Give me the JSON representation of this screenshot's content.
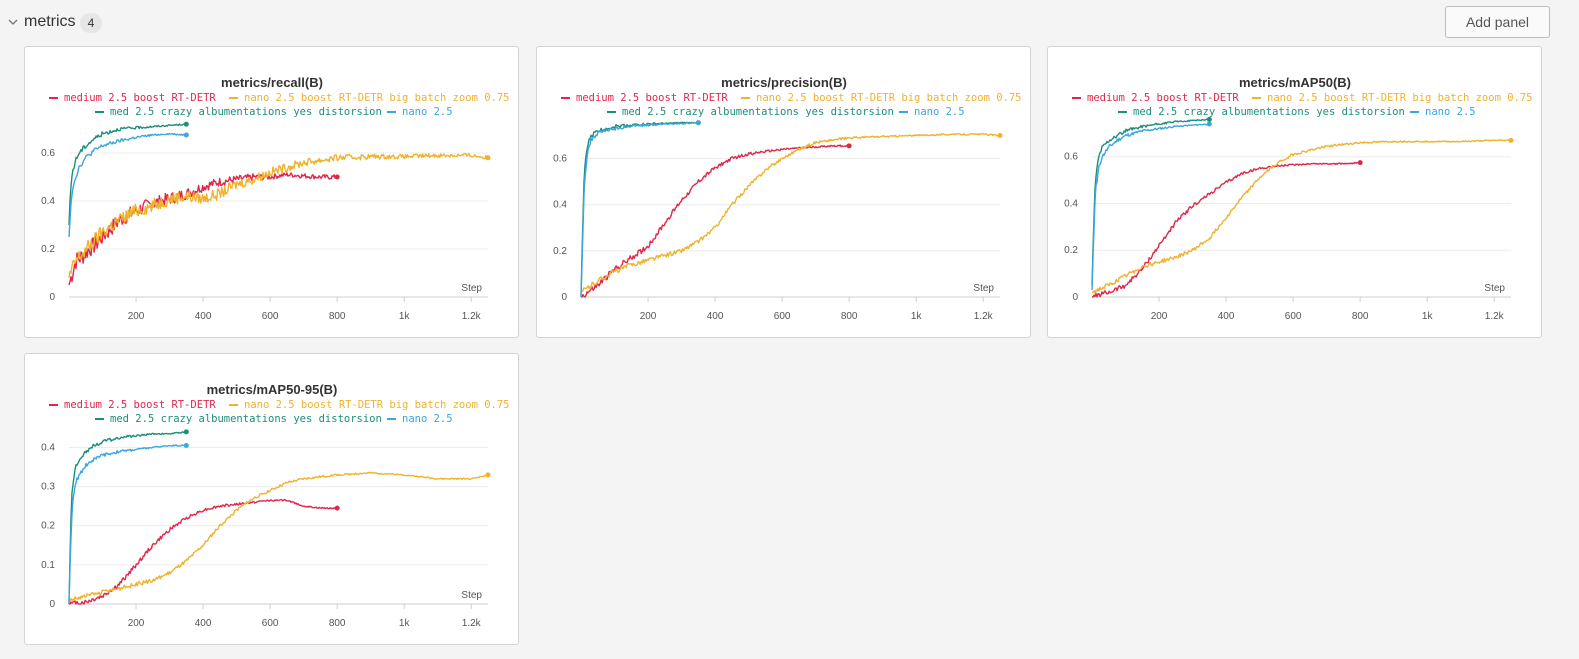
{
  "section": {
    "title": "metrics",
    "count": "4",
    "add_panel_label": "Add panel"
  },
  "colors": {
    "medium 2.5 boost RT-DETR": "#e0264a",
    "nano 2.5 boost RT-DETR big batch zoom 0.75": "#efb22c",
    "med 2.5 crazy albumentations yes distorsion": "#1e8e7c",
    "nano 2.5": "#3aa6dd"
  },
  "chart_data": [
    {
      "type": "line",
      "title": "metrics/recall(B)",
      "xlabel": "Step",
      "ylabel": "",
      "xlim": [
        0,
        1250
      ],
      "ylim": [
        0,
        0.75
      ],
      "xticks": [
        200,
        400,
        600,
        800,
        1000,
        1200
      ],
      "xtick_labels": [
        "200",
        "400",
        "600",
        "800",
        "1k",
        "1.2k"
      ],
      "yticks": [
        0,
        0.2,
        0.4,
        0.6
      ],
      "ytick_labels": [
        "0",
        "0.2",
        "0.4",
        "0.6"
      ],
      "legend": [
        "medium 2.5 boost RT-DETR",
        "nano 2.5 boost RT-DETR big batch zoom 0.75",
        "med 2.5 crazy albumentations yes distorsion",
        "nano 2.5"
      ],
      "series": [
        {
          "name": "medium 2.5 boost RT-DETR",
          "x": [
            0,
            20,
            40,
            60,
            80,
            100,
            150,
            200,
            250,
            300,
            350,
            400,
            450,
            500,
            550,
            600,
            650,
            700,
            750,
            800
          ],
          "y": [
            0.05,
            0.15,
            0.17,
            0.2,
            0.22,
            0.25,
            0.32,
            0.36,
            0.39,
            0.41,
            0.43,
            0.46,
            0.48,
            0.49,
            0.5,
            0.5,
            0.51,
            0.505,
            0.5,
            0.5
          ],
          "noise": 0.04
        },
        {
          "name": "nano 2.5 boost RT-DETR big batch zoom 0.75",
          "x": [
            0,
            20,
            40,
            60,
            80,
            100,
            150,
            200,
            250,
            300,
            350,
            400,
            450,
            500,
            550,
            600,
            700,
            800,
            900,
            1000,
            1100,
            1200,
            1250
          ],
          "y": [
            0.08,
            0.15,
            0.18,
            0.21,
            0.24,
            0.27,
            0.32,
            0.36,
            0.38,
            0.41,
            0.42,
            0.41,
            0.43,
            0.47,
            0.49,
            0.52,
            0.56,
            0.58,
            0.585,
            0.585,
            0.59,
            0.59,
            0.58
          ],
          "noise": 0.035
        },
        {
          "name": "med 2.5 crazy albumentations yes distorsion",
          "x": [
            0,
            5,
            10,
            20,
            30,
            50,
            75,
            100,
            150,
            200,
            250,
            300,
            350
          ],
          "y": [
            0.3,
            0.45,
            0.52,
            0.57,
            0.6,
            0.63,
            0.66,
            0.68,
            0.7,
            0.705,
            0.71,
            0.715,
            0.72
          ],
          "noise": 0.012
        },
        {
          "name": "nano 2.5",
          "x": [
            0,
            5,
            10,
            20,
            30,
            50,
            75,
            100,
            150,
            200,
            250,
            300,
            350
          ],
          "y": [
            0.25,
            0.38,
            0.45,
            0.5,
            0.54,
            0.58,
            0.61,
            0.63,
            0.65,
            0.665,
            0.675,
            0.68,
            0.675
          ],
          "noise": 0.012
        }
      ]
    },
    {
      "type": "line",
      "title": "metrics/precision(B)",
      "xlabel": "Step",
      "ylabel": "",
      "xlim": [
        0,
        1250
      ],
      "ylim": [
        0,
        0.78
      ],
      "xticks": [
        200,
        400,
        600,
        800,
        1000,
        1200
      ],
      "xtick_labels": [
        "200",
        "400",
        "600",
        "800",
        "1k",
        "1.2k"
      ],
      "yticks": [
        0,
        0.2,
        0.4,
        0.6
      ],
      "ytick_labels": [
        "0",
        "0.2",
        "0.4",
        "0.6"
      ],
      "legend": [
        "medium 2.5 boost RT-DETR",
        "nano 2.5 boost RT-DETR big batch zoom 0.75",
        "med 2.5 crazy albumentations yes distorsion",
        "nano 2.5"
      ],
      "series": [
        {
          "name": "medium 2.5 boost RT-DETR",
          "x": [
            0,
            50,
            100,
            150,
            200,
            250,
            300,
            350,
            400,
            450,
            500,
            550,
            600,
            650,
            700,
            750,
            800
          ],
          "y": [
            0,
            0.05,
            0.12,
            0.17,
            0.22,
            0.32,
            0.42,
            0.5,
            0.56,
            0.6,
            0.62,
            0.63,
            0.64,
            0.645,
            0.65,
            0.655,
            0.655
          ],
          "noise": 0.015
        },
        {
          "name": "nano 2.5 boost RT-DETR big batch zoom 0.75",
          "x": [
            0,
            50,
            100,
            150,
            200,
            250,
            300,
            350,
            400,
            450,
            500,
            550,
            600,
            650,
            700,
            800,
            900,
            1000,
            1100,
            1200,
            1250
          ],
          "y": [
            0.02,
            0.07,
            0.11,
            0.14,
            0.16,
            0.18,
            0.2,
            0.24,
            0.3,
            0.4,
            0.48,
            0.55,
            0.6,
            0.64,
            0.67,
            0.69,
            0.695,
            0.7,
            0.705,
            0.705,
            0.7
          ],
          "noise": 0.012
        },
        {
          "name": "med 2.5 crazy albumentations yes distorsion",
          "x": [
            0,
            5,
            10,
            20,
            30,
            50,
            75,
            100,
            150,
            200,
            250,
            300,
            350
          ],
          "y": [
            0,
            0.3,
            0.55,
            0.66,
            0.7,
            0.72,
            0.73,
            0.74,
            0.745,
            0.75,
            0.752,
            0.755,
            0.755
          ],
          "noise": 0.01
        },
        {
          "name": "nano 2.5",
          "x": [
            0,
            5,
            10,
            20,
            30,
            50,
            75,
            100,
            150,
            200,
            250,
            300,
            350
          ],
          "y": [
            0,
            0.25,
            0.5,
            0.63,
            0.68,
            0.71,
            0.72,
            0.73,
            0.74,
            0.745,
            0.75,
            0.752,
            0.755
          ],
          "noise": 0.01
        }
      ]
    },
    {
      "type": "line",
      "title": "metrics/mAP50(B)",
      "xlabel": "Step",
      "ylabel": "",
      "xlim": [
        0,
        1250
      ],
      "ylim": [
        0,
        0.77
      ],
      "xticks": [
        200,
        400,
        600,
        800,
        1000,
        1200
      ],
      "xtick_labels": [
        "200",
        "400",
        "600",
        "800",
        "1k",
        "1.2k"
      ],
      "yticks": [
        0,
        0.2,
        0.4,
        0.6
      ],
      "ytick_labels": [
        "0",
        "0.2",
        "0.4",
        "0.6"
      ],
      "legend": [
        "medium 2.5 boost RT-DETR",
        "nano 2.5 boost RT-DETR big batch zoom 0.75",
        "med 2.5 crazy albumentations yes distorsion",
        "nano 2.5"
      ],
      "series": [
        {
          "name": "medium 2.5 boost RT-DETR",
          "x": [
            0,
            50,
            100,
            150,
            200,
            250,
            300,
            350,
            400,
            450,
            500,
            550,
            600,
            650,
            700,
            750,
            800
          ],
          "y": [
            0,
            0.02,
            0.05,
            0.12,
            0.22,
            0.32,
            0.39,
            0.44,
            0.49,
            0.53,
            0.55,
            0.56,
            0.565,
            0.57,
            0.57,
            0.57,
            0.575
          ],
          "noise": 0.012
        },
        {
          "name": "nano 2.5 boost RT-DETR big batch zoom 0.75",
          "x": [
            0,
            50,
            100,
            150,
            200,
            250,
            300,
            350,
            400,
            450,
            500,
            550,
            600,
            700,
            800,
            900,
            1000,
            1100,
            1200,
            1250
          ],
          "y": [
            0.02,
            0.05,
            0.09,
            0.13,
            0.15,
            0.17,
            0.2,
            0.25,
            0.34,
            0.43,
            0.51,
            0.57,
            0.61,
            0.645,
            0.66,
            0.665,
            0.665,
            0.665,
            0.67,
            0.67
          ],
          "noise": 0.01
        },
        {
          "name": "med 2.5 crazy albumentations yes distorsion",
          "x": [
            0,
            5,
            10,
            20,
            30,
            50,
            75,
            100,
            150,
            200,
            250,
            300,
            350
          ],
          "y": [
            0.05,
            0.3,
            0.5,
            0.6,
            0.64,
            0.67,
            0.69,
            0.71,
            0.73,
            0.74,
            0.75,
            0.755,
            0.76
          ],
          "noise": 0.01
        },
        {
          "name": "nano 2.5",
          "x": [
            0,
            5,
            10,
            20,
            30,
            50,
            75,
            100,
            150,
            200,
            250,
            300,
            350
          ],
          "y": [
            0.03,
            0.25,
            0.45,
            0.55,
            0.6,
            0.64,
            0.67,
            0.69,
            0.71,
            0.72,
            0.73,
            0.735,
            0.74
          ],
          "noise": 0.01
        }
      ]
    },
    {
      "type": "line",
      "title": "metrics/mAP50-95(B)",
      "xlabel": "Step",
      "ylabel": "",
      "xlim": [
        0,
        1250
      ],
      "ylim": [
        0,
        0.46
      ],
      "xticks": [
        200,
        400,
        600,
        800,
        1000,
        1200
      ],
      "xtick_labels": [
        "200",
        "400",
        "600",
        "800",
        "1k",
        "1.2k"
      ],
      "yticks": [
        0,
        0.1,
        0.2,
        0.3,
        0.4
      ],
      "ytick_labels": [
        "0",
        "0.1",
        "0.2",
        "0.3",
        "0.4"
      ],
      "legend": [
        "medium 2.5 boost RT-DETR",
        "nano 2.5 boost RT-DETR big batch zoom 0.75",
        "med 2.5 crazy albumentations yes distorsion",
        "nano 2.5"
      ],
      "series": [
        {
          "name": "medium 2.5 boost RT-DETR",
          "x": [
            0,
            50,
            100,
            150,
            200,
            250,
            300,
            350,
            400,
            450,
            500,
            550,
            600,
            650,
            700,
            750,
            800
          ],
          "y": [
            0,
            0.005,
            0.02,
            0.05,
            0.1,
            0.15,
            0.19,
            0.22,
            0.24,
            0.25,
            0.255,
            0.26,
            0.265,
            0.265,
            0.25,
            0.245,
            0.245
          ],
          "noise": 0.007
        },
        {
          "name": "nano 2.5 boost RT-DETR big batch zoom 0.75",
          "x": [
            0,
            50,
            100,
            150,
            200,
            250,
            300,
            350,
            400,
            450,
            500,
            550,
            600,
            650,
            700,
            800,
            900,
            1000,
            1100,
            1200,
            1250
          ],
          "y": [
            0.01,
            0.02,
            0.03,
            0.04,
            0.05,
            0.06,
            0.08,
            0.11,
            0.15,
            0.2,
            0.24,
            0.27,
            0.29,
            0.31,
            0.32,
            0.33,
            0.335,
            0.33,
            0.32,
            0.32,
            0.33
          ],
          "noise": 0.006
        },
        {
          "name": "med 2.5 crazy albumentations yes distorsion",
          "x": [
            0,
            5,
            10,
            20,
            30,
            50,
            75,
            100,
            150,
            200,
            250,
            300,
            350
          ],
          "y": [
            0,
            0.2,
            0.3,
            0.35,
            0.37,
            0.39,
            0.405,
            0.415,
            0.425,
            0.43,
            0.435,
            0.435,
            0.44
          ],
          "noise": 0.006
        },
        {
          "name": "nano 2.5",
          "x": [
            0,
            5,
            10,
            20,
            30,
            50,
            75,
            100,
            150,
            200,
            250,
            300,
            350
          ],
          "y": [
            0,
            0.15,
            0.25,
            0.31,
            0.33,
            0.355,
            0.37,
            0.38,
            0.39,
            0.395,
            0.4,
            0.405,
            0.405
          ],
          "noise": 0.006
        }
      ]
    }
  ]
}
